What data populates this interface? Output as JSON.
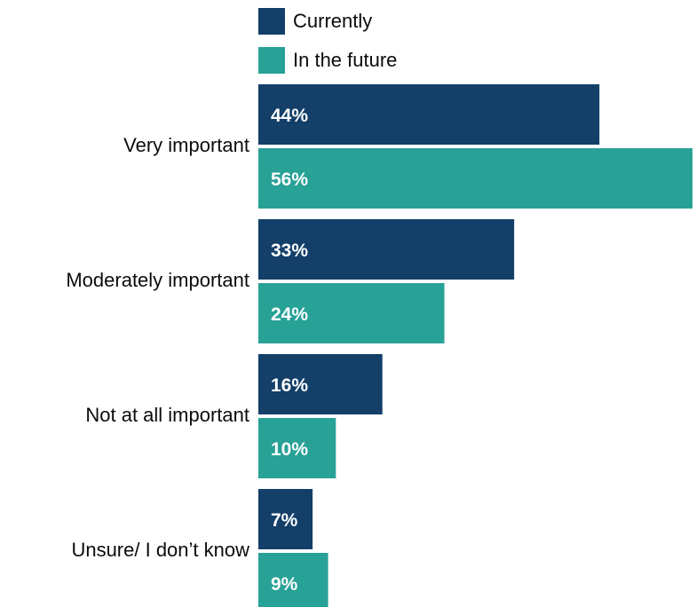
{
  "chart_data": {
    "type": "bar",
    "orientation": "horizontal",
    "categories": [
      "Very important",
      "Moderately important",
      "Not at all important",
      "Unsure/ I don’t know"
    ],
    "series": [
      {
        "name": "Currently",
        "values": [
          44,
          33,
          16,
          7
        ],
        "labels": [
          "44%",
          "33%",
          "16%",
          "7%"
        ]
      },
      {
        "name": "In the future",
        "values": [
          56,
          24,
          10,
          9
        ],
        "labels": [
          "56%",
          "24%",
          "10%",
          "9%"
        ]
      }
    ],
    "value_unit": "%",
    "legend_position": "top-left",
    "grid": false,
    "xlim": [
      0,
      56
    ],
    "colors": {
      "series": [
        "#133F69",
        "#28A197"
      ],
      "label_text": "#FFFFFF",
      "category_text": "#0B0C0C"
    }
  }
}
